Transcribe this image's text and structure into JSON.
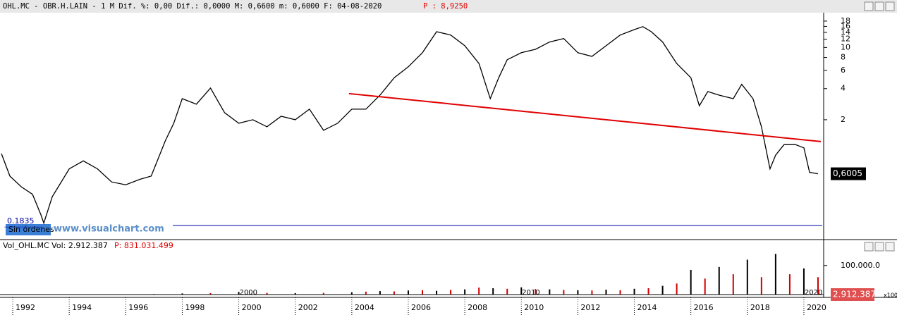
{
  "header": {
    "title": "OHL.MC - OBR.H.LAIN - 1 M Dif. %: 0,00 Dif.: 0,0000 M: 0,6600 m: 0,6000 F: 04-08-2020",
    "price": "P : 8,9250",
    "volume_title": "Vol_OHL.MC Vol: 2.912.387",
    "volume_total": "P: 831.031.499",
    "volume_last": "2.912.387",
    "volume_scale": "x100",
    "status": "Sin órdenes",
    "watermark": "www.visualchart.com"
  },
  "chart_data": [
    {
      "type": "line",
      "log": true,
      "color": "#000000",
      "x": [
        1991.6,
        1991.9,
        1992.3,
        1992.7,
        1993.0,
        1993.1,
        1993.4,
        1993.7,
        1994.0,
        1994.5,
        1995.0,
        1995.5,
        1996.0,
        1996.5,
        1996.9,
        1997.4,
        1997.7,
        1998.0,
        1998.5,
        1999.0,
        1999.5,
        2000.0,
        2000.5,
        2001.0,
        2001.5,
        2002.0,
        2002.5,
        2003.0,
        2003.5,
        2004.0,
        2004.5,
        2005.0,
        2005.5,
        2006.0,
        2006.5,
        2007.0,
        2007.5,
        2008.0,
        2008.5,
        2008.9,
        2009.2,
        2009.5,
        2010.0,
        2010.5,
        2011.0,
        2011.5,
        2012.0,
        2012.5,
        2013.0,
        2013.5,
        2014.0,
        2014.3,
        2014.6,
        2015.0,
        2015.5,
        2016.0,
        2016.3,
        2016.6,
        2017.0,
        2017.5,
        2017.8,
        2018.2,
        2018.5,
        2018.8,
        2019.0,
        2019.3,
        2019.7,
        2020.0,
        2020.2,
        2020.5
      ],
      "values": [
        0.94,
        0.57,
        0.45,
        0.38,
        0.24,
        0.2,
        0.36,
        0.49,
        0.67,
        0.8,
        0.67,
        0.5,
        0.47,
        0.53,
        0.57,
        1.25,
        1.85,
        3.2,
        2.83,
        4.05,
        2.34,
        1.85,
        2,
        1.71,
        2.16,
        2,
        2.53,
        1.58,
        1.85,
        2.53,
        2.53,
        3.46,
        5.1,
        6.5,
        8.9,
        14.2,
        13.2,
        10.4,
        7,
        3.2,
        5.1,
        7.6,
        8.9,
        9.6,
        11.3,
        12.2,
        8.9,
        8.2,
        10.4,
        13.2,
        14.9,
        15.9,
        14.2,
        11.3,
        7,
        5.1,
        2.73,
        3.75,
        3.46,
        3.2,
        4.4,
        3.2,
        1.71,
        0.67,
        0.91,
        1.15,
        1.15,
        1.07,
        0.62,
        0.6
      ],
      "xlim": [
        1991.55,
        2020.7
      ],
      "ylim": [
        0.143,
        21.7
      ],
      "xticks": [
        1992,
        1994,
        1996,
        1998,
        2000,
        2002,
        2004,
        2006,
        2008,
        2010,
        2012,
        2014,
        2016,
        2018,
        2020
      ],
      "yticks": [
        2,
        4,
        6,
        8,
        10,
        12,
        14,
        16,
        18
      ],
      "trendline": {
        "x": [
          2003.9,
          2020.6
        ],
        "values": [
          3.58,
          1.23
        ],
        "color": "#e00000"
      },
      "support_line": {
        "value": 0.19,
        "color": "#0000a0"
      },
      "last_price": {
        "value": 0.6005,
        "label": "0,6005"
      },
      "low": 0.1835
    },
    {
      "type": "bar",
      "x": [
        1992,
        1993,
        1994,
        1995,
        1996,
        1997,
        1998,
        1999,
        2000,
        2001,
        2002,
        2003,
        2004,
        2004.5,
        2005,
        2005.5,
        2006,
        2006.5,
        2007,
        2007.5,
        2008,
        2008.5,
        2009,
        2009.5,
        2010,
        2010.5,
        2011,
        2011.5,
        2012,
        2012.5,
        2013,
        2013.5,
        2014,
        2014.5,
        2015,
        2015.5,
        2016,
        2016.5,
        2017,
        2017.5,
        2018,
        2018.5,
        2019,
        2019.5,
        2020,
        2020.5
      ],
      "values": [
        1000,
        1000,
        1000,
        0,
        0,
        2000,
        4000,
        5000,
        9000,
        6000,
        5000,
        6000,
        8000,
        10000,
        12000,
        11000,
        14000,
        15000,
        13000,
        16000,
        18000,
        24000,
        22000,
        20000,
        25000,
        19000,
        18000,
        16000,
        15000,
        14000,
        17000,
        15000,
        20000,
        22000,
        30000,
        38000,
        85000,
        55000,
        95000,
        70000,
        120000,
        60000,
        140000,
        70000,
        90000,
        60000
      ],
      "colors": [
        "#000000",
        "#d00000"
      ],
      "xlim": [
        1991.55,
        2020.7
      ],
      "ylim": [
        0,
        165000
      ],
      "yticks": [
        {
          "value": 100000,
          "label": "100.000.0"
        }
      ]
    }
  ]
}
